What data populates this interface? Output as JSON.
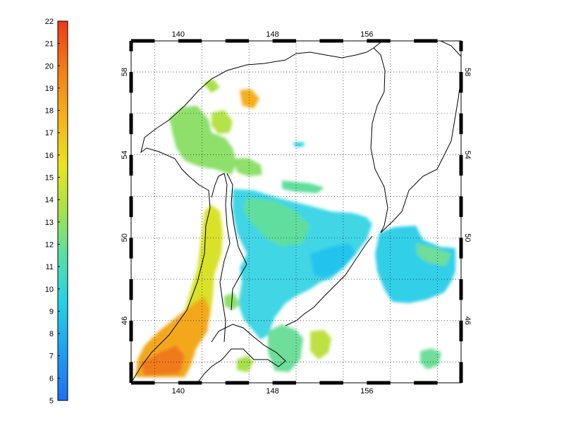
{
  "colorbar": {
    "min": 5,
    "max": 22,
    "ticks": [
      "5",
      "6",
      "7",
      "8",
      "9",
      "10",
      "11",
      "12",
      "13",
      "14",
      "15",
      "16",
      "17",
      "18",
      "19",
      "20",
      "21",
      "22"
    ]
  },
  "map": {
    "lon_ticks": [
      "140",
      "148",
      "156"
    ],
    "lat_ticks": [
      "58",
      "54",
      "50",
      "46"
    ],
    "lon_range": [
      136,
      164
    ],
    "lat_range": [
      43,
      59.5
    ],
    "grid": "dotted"
  },
  "colors": {
    "coast": "#000000",
    "grid": "#000000",
    "background": "#ffffff"
  }
}
